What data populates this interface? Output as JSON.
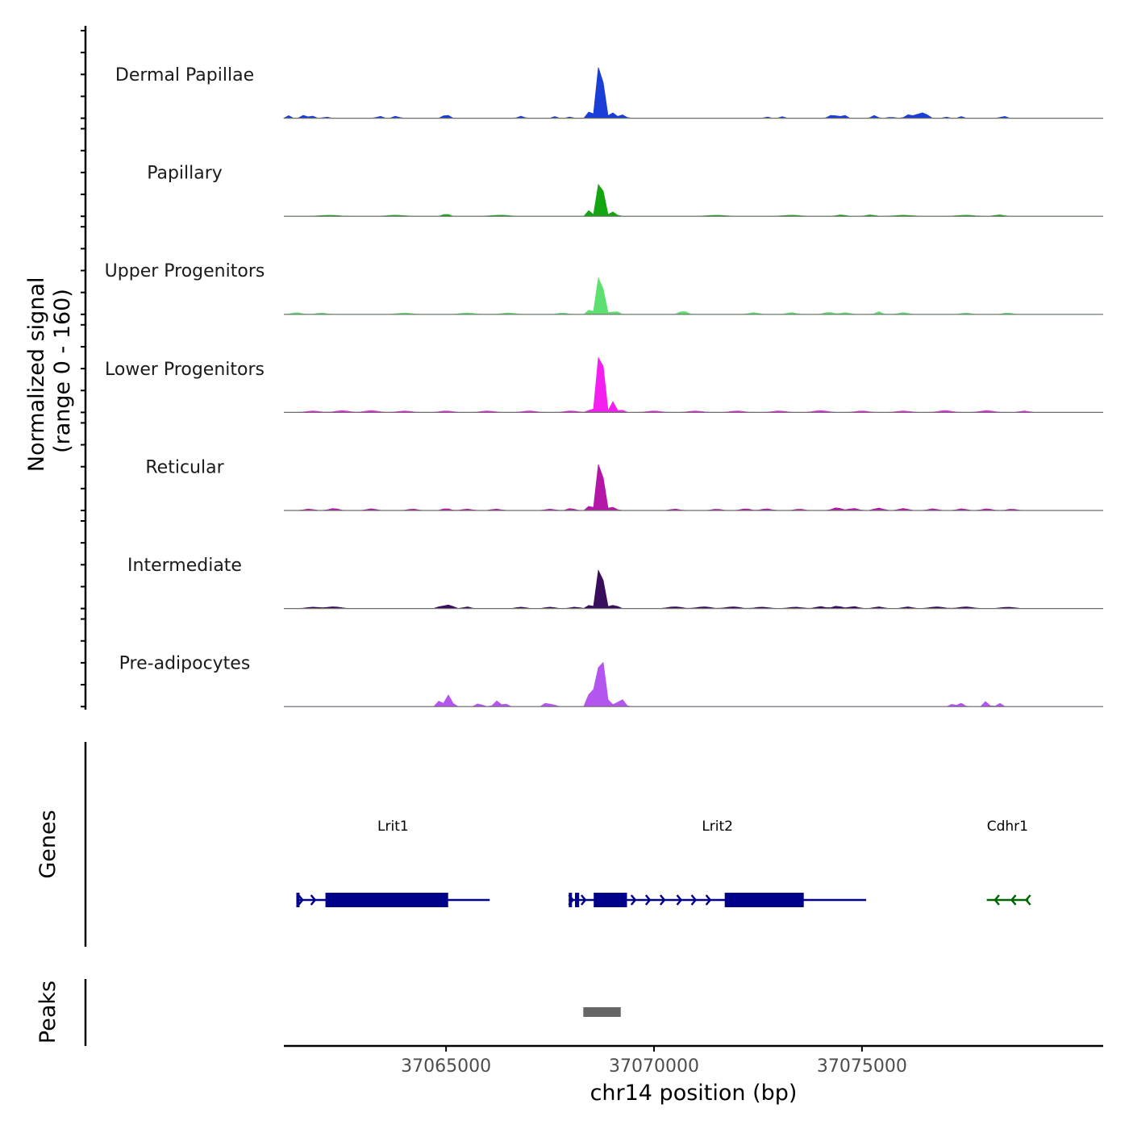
{
  "chart_data": {
    "type": "coverage",
    "chromosome": "chr14",
    "x_range": [
      37061100,
      37080800
    ],
    "xlabel": "chr14 position (bp)",
    "xticks": [
      {
        "value": 37065000,
        "label": "37065000"
      },
      {
        "value": 37070000,
        "label": "37070000"
      },
      {
        "value": 37075000,
        "label": "37075000"
      }
    ],
    "coverage": {
      "ylabel": [
        "Normalized signal",
        "(range 0 - 160)"
      ],
      "ylim": [
        0,
        160
      ],
      "tracks": [
        {
          "name": "Dermal Papillae",
          "color": "#1a3fd6",
          "peaks": [
            [
              37068650,
              160,
              30
            ],
            [
              37068800,
              120,
              40
            ],
            [
              37068480,
              30,
              50
            ],
            [
              37069050,
              25,
              40
            ],
            [
              37069250,
              10,
              60
            ],
            [
              37061200,
              8,
              40
            ],
            [
              37061600,
              10,
              60
            ],
            [
              37061800,
              6,
              40
            ],
            [
              37062100,
              6,
              40
            ],
            [
              37063400,
              6,
              60
            ],
            [
              37063800,
              6,
              60
            ],
            [
              37065000,
              15,
              50
            ],
            [
              37066800,
              6,
              60
            ],
            [
              37067600,
              5,
              40
            ],
            [
              37068000,
              5,
              40
            ],
            [
              37072700,
              5,
              40
            ],
            [
              37073100,
              5,
              40
            ],
            [
              37074300,
              10,
              80
            ],
            [
              37074550,
              12,
              50
            ],
            [
              37075300,
              8,
              60
            ],
            [
              37075700,
              6,
              40
            ],
            [
              37076100,
              10,
              60
            ],
            [
              37076300,
              14,
              60
            ],
            [
              37076500,
              20,
              60
            ],
            [
              37077000,
              5,
              40
            ],
            [
              37077400,
              5,
              40
            ],
            [
              37078400,
              6,
              60
            ]
          ]
        },
        {
          "name": "Papillary",
          "color": "#15a512",
          "peaks": [
            [
              37068650,
              100,
              30
            ],
            [
              37068800,
              85,
              40
            ],
            [
              37068460,
              20,
              50
            ],
            [
              37069050,
              20,
              40
            ],
            [
              37065000,
              8,
              60
            ],
            [
              37062200,
              3,
              200
            ],
            [
              37063800,
              3,
              200
            ],
            [
              37066300,
              3,
              200
            ],
            [
              37071500,
              3,
              200
            ],
            [
              37073300,
              3,
              200
            ],
            [
              37074500,
              4,
              100
            ],
            [
              37075200,
              4,
              100
            ],
            [
              37076000,
              3,
              200
            ],
            [
              37077500,
              3,
              200
            ],
            [
              37078300,
              4,
              100
            ]
          ]
        },
        {
          "name": "Upper Progenitors",
          "color": "#5de070",
          "peaks": [
            [
              37068650,
              115,
              30
            ],
            [
              37068800,
              85,
              40
            ],
            [
              37068480,
              20,
              50
            ],
            [
              37069070,
              20,
              40
            ],
            [
              37061400,
              5,
              100
            ],
            [
              37062000,
              4,
              100
            ],
            [
              37064000,
              4,
              150
            ],
            [
              37065500,
              4,
              150
            ],
            [
              37066500,
              4,
              150
            ],
            [
              37067800,
              4,
              100
            ],
            [
              37070700,
              10,
              80
            ],
            [
              37072400,
              5,
              100
            ],
            [
              37073300,
              5,
              100
            ],
            [
              37074200,
              6,
              100
            ],
            [
              37074600,
              5,
              100
            ],
            [
              37075400,
              8,
              60
            ],
            [
              37076000,
              5,
              100
            ],
            [
              37077500,
              4,
              100
            ],
            [
              37078500,
              4,
              100
            ]
          ]
        },
        {
          "name": "Lower Progenitors",
          "color": "#f51ef0",
          "peaks": [
            [
              37068660,
              160,
              32
            ],
            [
              37068790,
              140,
              40
            ],
            [
              37069030,
              35,
              40
            ],
            [
              37068500,
              15,
              50
            ],
            [
              37069200,
              8,
              60
            ],
            [
              37061800,
              4,
              150
            ],
            [
              37062500,
              5,
              150
            ],
            [
              37063200,
              5,
              150
            ],
            [
              37064000,
              4,
              150
            ],
            [
              37065000,
              4,
              150
            ],
            [
              37066000,
              4,
              150
            ],
            [
              37067000,
              4,
              150
            ],
            [
              37068000,
              4,
              150
            ],
            [
              37070000,
              4,
              150
            ],
            [
              37071000,
              4,
              150
            ],
            [
              37072000,
              4,
              150
            ],
            [
              37073000,
              4,
              150
            ],
            [
              37074000,
              5,
              150
            ],
            [
              37075000,
              4,
              150
            ],
            [
              37076000,
              4,
              150
            ],
            [
              37077000,
              5,
              150
            ],
            [
              37078000,
              5,
              150
            ],
            [
              37078900,
              4,
              100
            ]
          ]
        },
        {
          "name": "Reticular",
          "color": "#b416a8",
          "peaks": [
            [
              37068650,
              145,
              30
            ],
            [
              37068800,
              110,
              40
            ],
            [
              37068480,
              20,
              50
            ],
            [
              37069050,
              15,
              40
            ],
            [
              37061700,
              4,
              100
            ],
            [
              37062300,
              6,
              100
            ],
            [
              37063200,
              5,
              100
            ],
            [
              37064200,
              4,
              100
            ],
            [
              37065000,
              6,
              80
            ],
            [
              37065500,
              4,
              100
            ],
            [
              37066200,
              4,
              100
            ],
            [
              37067500,
              4,
              100
            ],
            [
              37068000,
              6,
              80
            ],
            [
              37070500,
              4,
              100
            ],
            [
              37071500,
              4,
              100
            ],
            [
              37072200,
              5,
              100
            ],
            [
              37072700,
              5,
              100
            ],
            [
              37073500,
              4,
              100
            ],
            [
              37074400,
              8,
              100
            ],
            [
              37074800,
              6,
              100
            ],
            [
              37075400,
              7,
              100
            ],
            [
              37076000,
              6,
              100
            ],
            [
              37076700,
              5,
              100
            ],
            [
              37077400,
              5,
              100
            ],
            [
              37078000,
              5,
              100
            ],
            [
              37078600,
              4,
              100
            ]
          ]
        },
        {
          "name": "Intermediate",
          "color": "#3a0c5c",
          "peaks": [
            [
              37068650,
              120,
              30
            ],
            [
              37068800,
              95,
              40
            ],
            [
              37068480,
              15,
              50
            ],
            [
              37069060,
              15,
              50
            ],
            [
              37061800,
              4,
              150
            ],
            [
              37062300,
              5,
              150
            ],
            [
              37064900,
              8,
              80
            ],
            [
              37065100,
              12,
              60
            ],
            [
              37065500,
              5,
              80
            ],
            [
              37066800,
              4,
              100
            ],
            [
              37067500,
              4,
              100
            ],
            [
              37068100,
              4,
              100
            ],
            [
              37070500,
              5,
              150
            ],
            [
              37071200,
              5,
              150
            ],
            [
              37071900,
              5,
              150
            ],
            [
              37072600,
              4,
              150
            ],
            [
              37073400,
              4,
              150
            ],
            [
              37074000,
              6,
              100
            ],
            [
              37074400,
              7,
              100
            ],
            [
              37074800,
              6,
              100
            ],
            [
              37075400,
              5,
              100
            ],
            [
              37076100,
              5,
              100
            ],
            [
              37076800,
              5,
              150
            ],
            [
              37077500,
              5,
              150
            ],
            [
              37078500,
              4,
              150
            ]
          ]
        },
        {
          "name": "Pre-adipocytes",
          "color": "#b455f0",
          "peaks": [
            [
              37068640,
              160,
              25
            ],
            [
              37068740,
              140,
              30
            ],
            [
              37068820,
              115,
              40
            ],
            [
              37068420,
              35,
              40
            ],
            [
              37068540,
              50,
              40
            ],
            [
              37069080,
              25,
              40
            ],
            [
              37069270,
              25,
              40
            ],
            [
              37064850,
              20,
              40
            ],
            [
              37065000,
              25,
              40
            ],
            [
              37065100,
              45,
              40
            ],
            [
              37065800,
              12,
              50
            ],
            [
              37066200,
              18,
              50
            ],
            [
              37066400,
              12,
              50
            ],
            [
              37067400,
              10,
              50
            ],
            [
              37067550,
              10,
              50
            ],
            [
              37078000,
              10,
              50
            ],
            [
              37077950,
              8,
              30
            ],
            [
              37077400,
              10,
              50
            ],
            [
              37077200,
              10,
              50
            ],
            [
              37078300,
              10,
              50
            ]
          ]
        }
      ]
    },
    "genes": {
      "label": "Genes",
      "items": [
        {
          "name": "Lrit1",
          "strand": "+",
          "color": "#00008b",
          "start": 37061400,
          "end": 37066050,
          "exons": [
            [
              37061400,
              37061450
            ],
            [
              37062100,
              37065050
            ]
          ],
          "arrows": [
            37061550,
            37061850
          ]
        },
        {
          "name": "Lrit2",
          "strand": "+",
          "color": "#00008b",
          "start": 37067950,
          "end": 37075100,
          "exons": [
            [
              37067950,
              37068000
            ],
            [
              37068100,
              37068200
            ],
            [
              37068550,
              37069350
            ],
            [
              37071700,
              37073600
            ]
          ],
          "arrows": [
            37068050,
            37068350,
            37069550,
            37069900,
            37070250,
            37070650,
            37071000,
            37071350
          ]
        },
        {
          "name": "Cdhr1",
          "strand": "-",
          "color": "#006400",
          "start": 37078000,
          "end": 37079000,
          "exons": [],
          "arrows": [
            37078200,
            37078600,
            37078950
          ]
        }
      ]
    },
    "peaks": {
      "label": "Peaks",
      "color": "#666666",
      "regions": [
        [
          37068300,
          37069200
        ]
      ]
    }
  }
}
